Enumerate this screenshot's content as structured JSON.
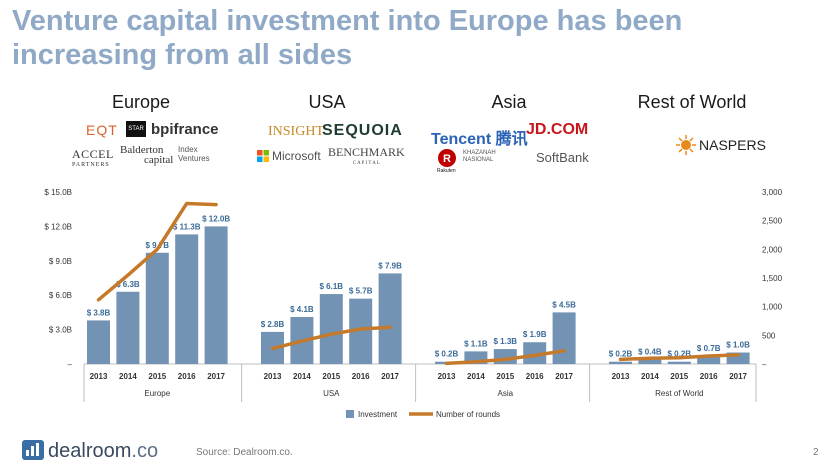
{
  "title": "Venture capital investment into Europe has been increasing from all sides",
  "regions": {
    "europe": {
      "header": "Europe",
      "logos": {
        "eqt": "EQT",
        "star": "STAR",
        "bpi": "bpifrance",
        "accel": "ACCEL",
        "accel_sub": "PARTNERS",
        "balderton": "Balderton",
        "balderton_sub": "capital",
        "index": "Index",
        "index_sub": "Ventures"
      }
    },
    "usa": {
      "header": "USA",
      "logos": {
        "insight": "INSIGHT",
        "sequoia": "SEQUOIA",
        "microsoft": "Microsoft",
        "benchmark": "BENCHMARK",
        "benchmark_sub": "C A P I T A L"
      }
    },
    "asia": {
      "header": "Asia",
      "logos": {
        "tencent": "Tencent 腾讯",
        "jd": "JD.COM",
        "rakuten": "Rakuten",
        "khazanah": "KHAZANAH",
        "khazanah_sub": "NASIONAL",
        "softbank": "SoftBank"
      }
    },
    "row": {
      "header": "Rest of World",
      "logos": {
        "naspers": "NASPERS"
      }
    }
  },
  "chart_data": {
    "type": "bar",
    "left_axis": {
      "ticks": [
        "$ 15.0B",
        "$ 12.0B",
        "$ 9.0B",
        "$ 6.0B",
        "$ 3.0B",
        "–"
      ],
      "range": [
        0,
        15
      ]
    },
    "right_axis": {
      "ticks": [
        "3,000",
        "2,500",
        "2,000",
        "1,500",
        "1,000",
        "500",
        "–"
      ],
      "range": [
        0,
        3000
      ]
    },
    "groups": [
      {
        "name": "Europe",
        "years": [
          "2013",
          "2014",
          "2015",
          "2016",
          "2017"
        ],
        "investment": [
          3.8,
          6.3,
          9.7,
          11.3,
          12.0
        ],
        "labels": [
          "$ 3.8B",
          "$ 6.3B",
          "$ 9.7B",
          "$ 11.3B",
          "$ 12.0B"
        ],
        "rounds": [
          1120,
          1550,
          2000,
          2800,
          2780
        ]
      },
      {
        "name": "USA",
        "years": [
          "2013",
          "2014",
          "2015",
          "2016",
          "2017"
        ],
        "investment": [
          2.8,
          4.1,
          6.1,
          5.7,
          7.9
        ],
        "labels": [
          "$ 2.8B",
          "$ 4.1B",
          "$ 6.1B",
          "$ 5.7B",
          "$ 7.9B"
        ],
        "rounds": [
          270,
          400,
          520,
          610,
          640
        ]
      },
      {
        "name": "Asia",
        "years": [
          "2013",
          "2014",
          "2015",
          "2016",
          "2017"
        ],
        "investment": [
          0.2,
          1.1,
          1.3,
          1.9,
          4.5
        ],
        "labels": [
          "$ 0.2B",
          "$ 1.1B",
          "$ 1.3B",
          "$ 1.9B",
          "$ 4.5B"
        ],
        "rounds": [
          10,
          40,
          80,
          150,
          230
        ]
      },
      {
        "name": "Rest of World",
        "years": [
          "2013",
          "2014",
          "2015",
          "2016",
          "2017"
        ],
        "investment": [
          0.2,
          0.4,
          0.2,
          0.7,
          1.0
        ],
        "labels": [
          "$ 0.2B",
          "$ 0.4B",
          "$ 0.2B",
          "$ 0.7B",
          "$ 1.0B"
        ],
        "rounds": [
          80,
          100,
          110,
          140,
          160
        ]
      }
    ],
    "legend": [
      {
        "name": "Investment",
        "color": "#7293b3"
      },
      {
        "name": "Number of rounds",
        "color": "#c57a2b"
      }
    ],
    "legend_placement": "bottom"
  },
  "footer": {
    "brand": "dealroom",
    "brand_suffix": ".co",
    "source": "Source: Dealroom.co.",
    "page": "2"
  }
}
